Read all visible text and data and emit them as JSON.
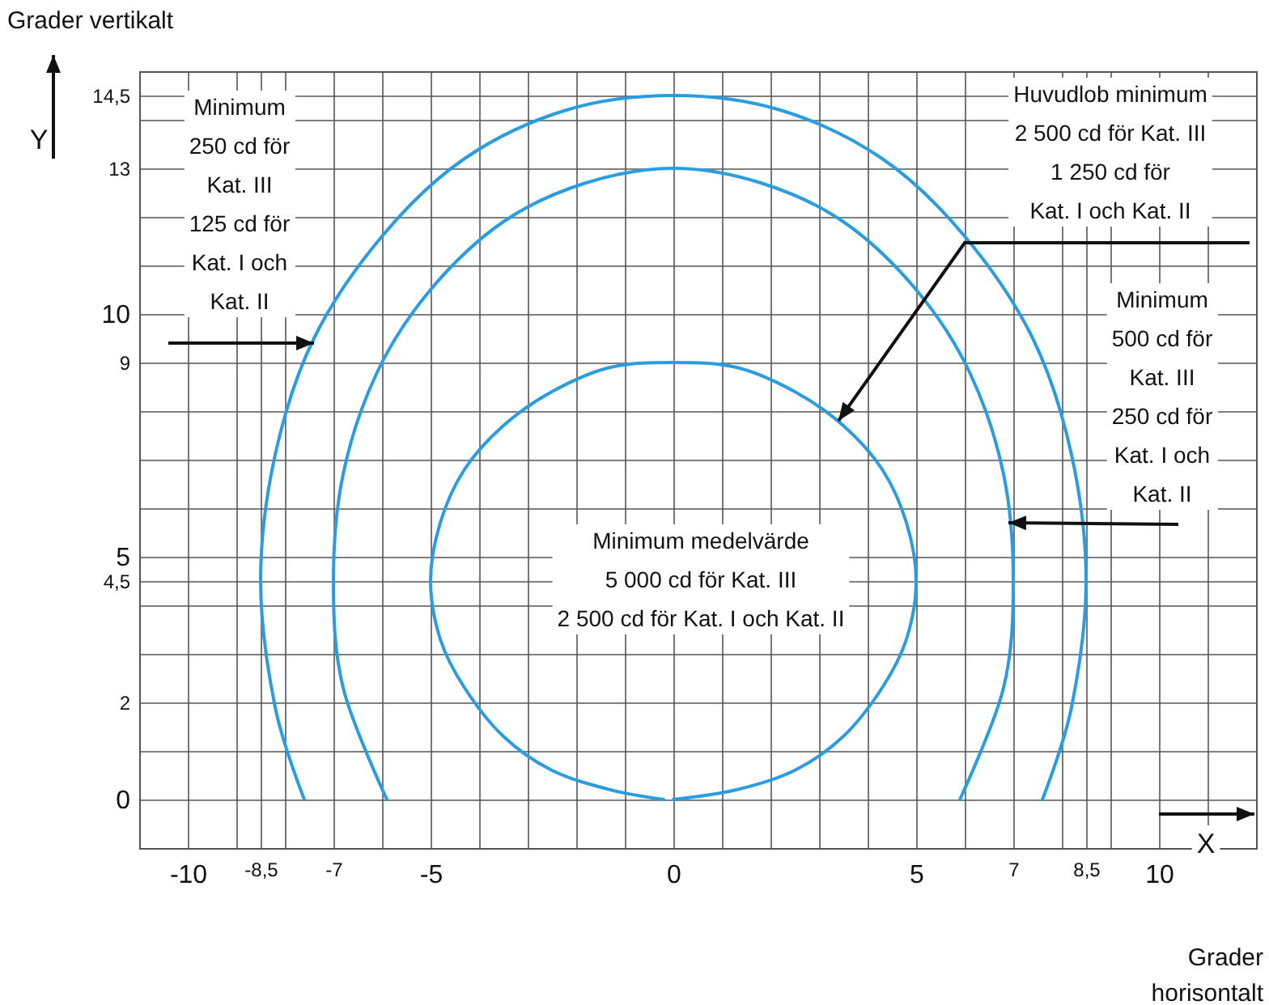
{
  "chart_data": {
    "type": "line",
    "xlabel": "Grader horisontalt",
    "ylabel": "Grader vertikalt",
    "xlim": [
      -11,
      12
    ],
    "ylim": [
      -1,
      15
    ],
    "xticks": [
      {
        "value": -11,
        "label": null
      },
      -10,
      {
        "value": -9,
        "label": null
      },
      {
        "value": -8.5,
        "label": "-8,5"
      },
      {
        "value": -8,
        "label": null
      },
      -7,
      {
        "value": -6,
        "label": null
      },
      -5,
      {
        "value": -4,
        "label": null
      },
      {
        "value": -3,
        "label": null
      },
      {
        "value": -2,
        "label": null
      },
      {
        "value": -1,
        "label": null
      },
      0,
      {
        "value": 1,
        "label": null
      },
      {
        "value": 2,
        "label": null
      },
      {
        "value": 3,
        "label": null
      },
      {
        "value": 4,
        "label": null
      },
      5,
      {
        "value": 6,
        "label": null
      },
      7,
      {
        "value": 8,
        "label": null
      },
      {
        "value": 8.5,
        "label": "8,5"
      },
      {
        "value": 9,
        "label": null
      },
      10,
      {
        "value": 11,
        "label": null
      },
      {
        "value": 12,
        "label": null
      }
    ],
    "yticks": [
      {
        "value": -1,
        "label": null
      },
      0,
      {
        "value": 1,
        "label": null
      },
      2,
      {
        "value": 3,
        "label": null
      },
      {
        "value": 4,
        "label": null
      },
      {
        "value": 4.5,
        "label": "4,5"
      },
      5,
      {
        "value": 6,
        "label": null
      },
      {
        "value": 7,
        "label": null
      },
      {
        "value": 8,
        "label": null
      },
      9,
      10,
      {
        "value": 11,
        "label": null
      },
      {
        "value": 12,
        "label": null
      },
      13,
      {
        "value": 14,
        "label": null
      },
      {
        "value": 14.5,
        "label": "14,5"
      },
      {
        "value": 15,
        "label": null
      }
    ],
    "grid": true,
    "series": [
      {
        "color": "#2a9de0",
        "x": [
          7.6,
          8.2,
          8.5,
          8.2,
          7.4,
          6,
          4.3,
          2.2,
          0,
          -2.2,
          -4.3,
          -6,
          -7.4,
          -8.2,
          -8.5,
          -8.2,
          -7.6
        ],
        "values": [
          0,
          1.9,
          4.5,
          7.1,
          9.5,
          11.6,
          13.2,
          14.2,
          14.5,
          14.2,
          13.2,
          11.6,
          9.5,
          7.1,
          4.5,
          1.9,
          0
        ]
      },
      {
        "color": "#2a9de0",
        "x": [
          5.9,
          6.8,
          7,
          6.8,
          6.1,
          5,
          3.5,
          1.8,
          0,
          -1.8,
          -3.5,
          -5,
          -6.1,
          -6.8,
          -7,
          -6.8,
          -5.9
        ],
        "values": [
          0,
          2.3,
          4.5,
          6.7,
          8.8,
          10.5,
          11.9,
          12.7,
          13,
          12.7,
          11.9,
          10.5,
          8.8,
          6.7,
          4.5,
          2.3,
          0
        ]
      },
      {
        "color": "#2a9de0",
        "x": [
          0,
          1.3,
          2.5,
          3.5,
          4.3,
          4.8,
          5,
          4.8,
          4.3,
          3.5,
          2.5,
          1.3,
          0,
          -1.3,
          -2.5,
          -3.5,
          -4.3,
          -4.8,
          -5,
          -4.8,
          -4.3,
          -3.5,
          -2.5,
          -1.3,
          -0.2
        ],
        "values": [
          0,
          0.2,
          0.6,
          1.3,
          2.3,
          3.3,
          4.5,
          5.7,
          6.8,
          7.7,
          8.4,
          8.9,
          9,
          8.9,
          8.4,
          7.7,
          6.8,
          5.7,
          4.5,
          3.3,
          2.3,
          1.3,
          0.6,
          0.2,
          0
        ]
      }
    ],
    "annotations": [
      {
        "text": "Minimum\n250 cd för\nKat. III\n125 cd för\nKat. I och\nKat. II",
        "x": -7.4,
        "y": 9.4
      },
      {
        "text": "Huvudlob minimum\n2 500 cd för Kat. III\n1 250 cd för\nKat. I och Kat. II",
        "x": 3.4,
        "y": 7.8
      },
      {
        "text": "Minimum\n500 cd för\nKat. III\n250 cd för\nKat. I och\nKat. II",
        "x": 6.9,
        "y": 5.7
      },
      "Minimum medelvärde\n5 000 cd för Kat. III\n2 500 cd för Kat. I och Kat. II",
      "Y",
      "X"
    ]
  }
}
